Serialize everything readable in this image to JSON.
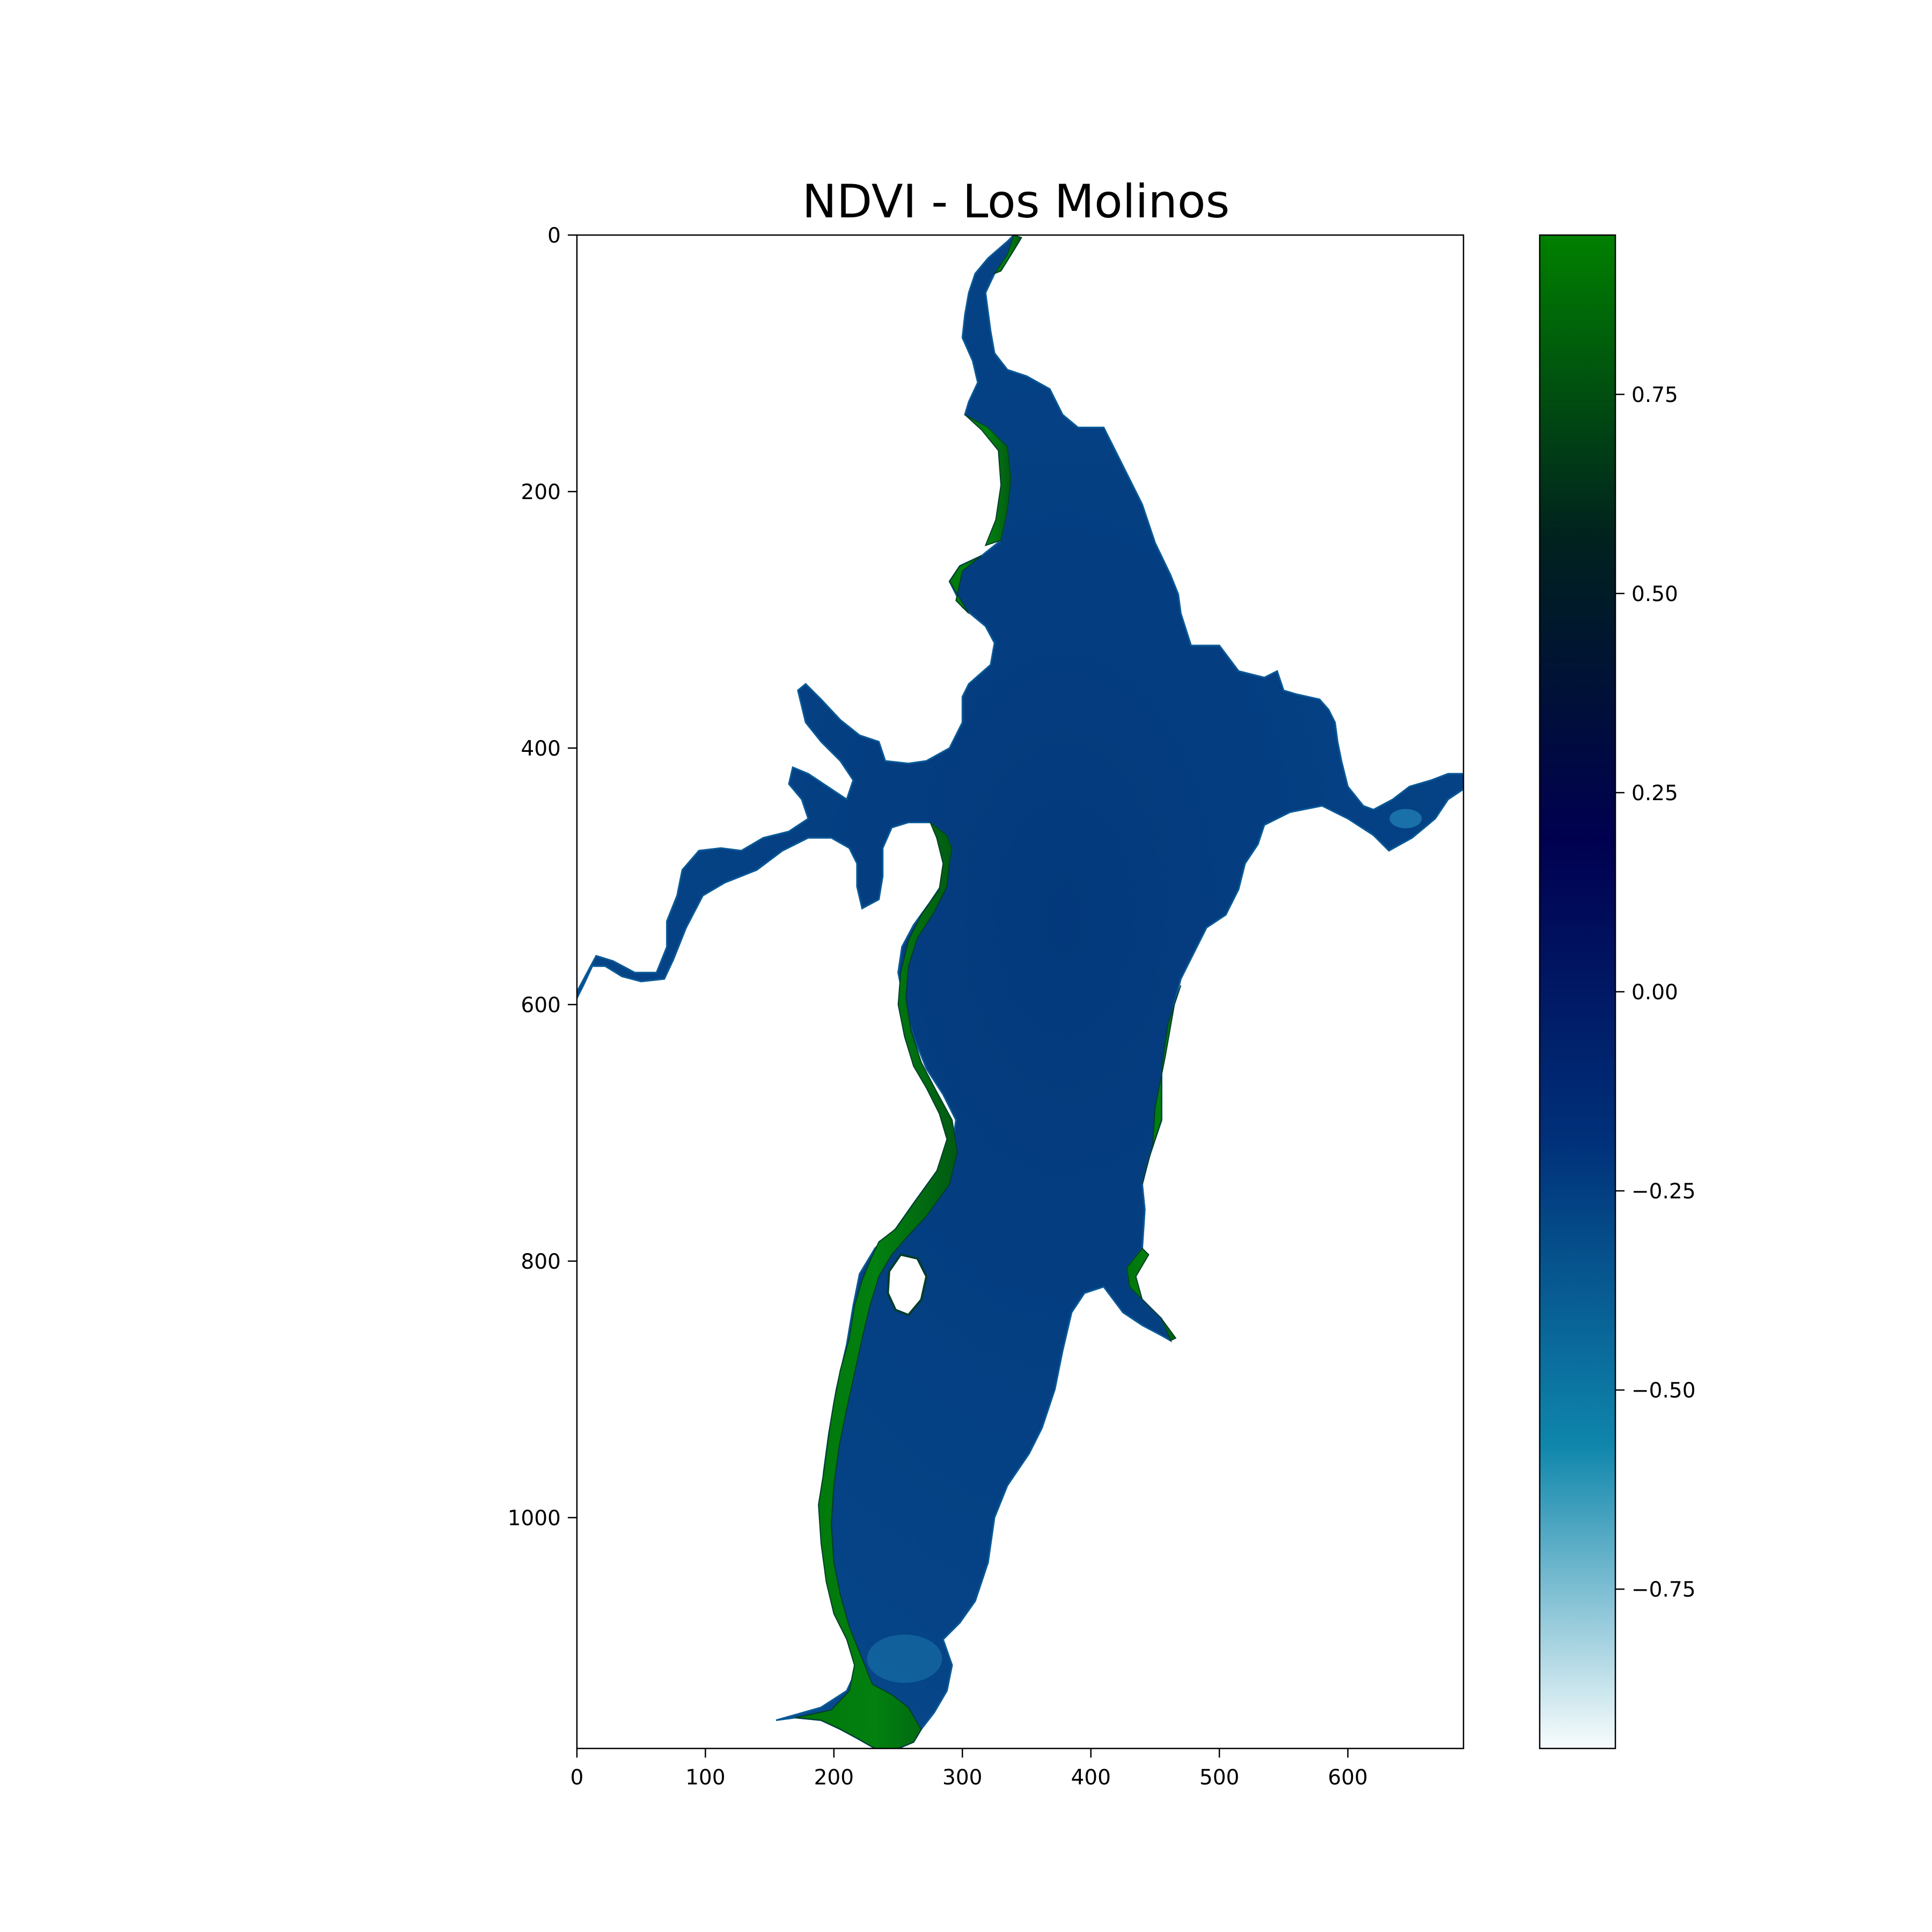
{
  "chart_data": {
    "type": "heatmap",
    "title": "NDVI - Los Molinos",
    "xlabel": "",
    "ylabel": "",
    "xlim": [
      0,
      690
    ],
    "ylim": [
      1180,
      0
    ],
    "x_ticks": [
      0,
      100,
      200,
      300,
      400,
      500,
      600
    ],
    "x_tick_labels": [
      "0",
      "100",
      "200",
      "300",
      "400",
      "500",
      "600"
    ],
    "y_ticks": [
      0,
      200,
      400,
      600,
      800,
      1000
    ],
    "y_tick_labels": [
      "0",
      "200",
      "400",
      "600",
      "800",
      "1000"
    ],
    "colorbar": {
      "cmap": "ocean_r",
      "range": [
        -0.95,
        0.95
      ],
      "ticks": [
        -0.75,
        -0.5,
        -0.25,
        0.0,
        0.25,
        0.5,
        0.75
      ],
      "tick_labels": [
        "−0.75",
        "−0.50",
        "−0.25",
        "0.00",
        "0.25",
        "0.50",
        "0.75"
      ],
      "colors": [
        "#f7fcfd",
        "#0f86ac",
        "#00317a",
        "#000050",
        "#00221e",
        "#008000"
      ]
    },
    "image": {
      "description_colors": {
        "water": "#053f83",
        "vegetation": "#017a09",
        "shallow": "#1370a8"
      },
      "shoreline": [
        [
          340,
          0
        ],
        [
          335,
          15
        ],
        [
          325,
          30
        ],
        [
          318,
          45
        ],
        [
          320,
          60
        ],
        [
          322,
          75
        ],
        [
          325,
          92
        ],
        [
          335,
          105
        ],
        [
          350,
          110
        ],
        [
          368,
          120
        ],
        [
          378,
          140
        ],
        [
          390,
          150
        ],
        [
          410,
          150
        ],
        [
          425,
          180
        ],
        [
          440,
          210
        ],
        [
          450,
          240
        ],
        [
          462,
          265
        ],
        [
          468,
          280
        ],
        [
          470,
          295
        ],
        [
          478,
          320
        ],
        [
          500,
          320
        ],
        [
          515,
          340
        ],
        [
          535,
          345
        ],
        [
          545,
          340
        ],
        [
          550,
          355
        ],
        [
          560,
          358
        ],
        [
          578,
          362
        ],
        [
          585,
          370
        ],
        [
          590,
          380
        ],
        [
          592,
          395
        ],
        [
          595,
          410
        ],
        [
          600,
          430
        ],
        [
          612,
          445
        ],
        [
          620,
          448
        ],
        [
          635,
          440
        ],
        [
          648,
          430
        ],
        [
          665,
          425
        ],
        [
          678,
          420
        ],
        [
          690,
          420
        ],
        [
          690,
          432
        ],
        [
          678,
          440
        ],
        [
          668,
          455
        ],
        [
          650,
          470
        ],
        [
          632,
          480
        ],
        [
          620,
          468
        ],
        [
          600,
          455
        ],
        [
          580,
          445
        ],
        [
          555,
          450
        ],
        [
          535,
          460
        ],
        [
          530,
          475
        ],
        [
          520,
          490
        ],
        [
          515,
          510
        ],
        [
          505,
          530
        ],
        [
          490,
          540
        ],
        [
          480,
          560
        ],
        [
          470,
          580
        ],
        [
          462,
          610
        ],
        [
          455,
          650
        ],
        [
          455,
          690
        ],
        [
          445,
          720
        ],
        [
          440,
          740
        ],
        [
          442,
          760
        ],
        [
          440,
          790
        ],
        [
          428,
          805
        ],
        [
          430,
          820
        ],
        [
          445,
          835
        ],
        [
          455,
          845
        ],
        [
          462,
          862
        ],
        [
          455,
          858
        ],
        [
          440,
          850
        ],
        [
          425,
          840
        ],
        [
          410,
          820
        ],
        [
          395,
          825
        ],
        [
          385,
          840
        ],
        [
          378,
          870
        ],
        [
          372,
          900
        ],
        [
          362,
          930
        ],
        [
          352,
          950
        ],
        [
          335,
          975
        ],
        [
          325,
          1000
        ],
        [
          320,
          1035
        ],
        [
          310,
          1065
        ],
        [
          298,
          1082
        ],
        [
          285,
          1095
        ],
        [
          292,
          1115
        ],
        [
          288,
          1135
        ],
        [
          278,
          1152
        ],
        [
          268,
          1165
        ],
        [
          262,
          1175
        ],
        [
          250,
          1180
        ],
        [
          232,
          1180
        ],
        [
          218,
          1172
        ],
        [
          205,
          1165
        ],
        [
          190,
          1158
        ],
        [
          170,
          1156
        ],
        [
          155,
          1158
        ],
        [
          190,
          1148
        ],
        [
          210,
          1135
        ],
        [
          218,
          1118
        ],
        [
          212,
          1095
        ],
        [
          202,
          1075
        ],
        [
          196,
          1055
        ],
        [
          192,
          1030
        ],
        [
          190,
          1000
        ],
        [
          192,
          965
        ],
        [
          196,
          935
        ],
        [
          202,
          900
        ],
        [
          210,
          865
        ],
        [
          215,
          835
        ],
        [
          220,
          810
        ],
        [
          232,
          790
        ],
        [
          248,
          775
        ],
        [
          262,
          755
        ],
        [
          280,
          730
        ],
        [
          292,
          710
        ],
        [
          295,
          690
        ],
        [
          285,
          670
        ],
        [
          272,
          650
        ],
        [
          262,
          625
        ],
        [
          255,
          600
        ],
        [
          250,
          575
        ],
        [
          253,
          555
        ],
        [
          262,
          538
        ],
        [
          275,
          520
        ],
        [
          285,
          505
        ],
        [
          290,
          490
        ],
        [
          292,
          478
        ],
        [
          288,
          468
        ],
        [
          275,
          458
        ],
        [
          258,
          458
        ],
        [
          245,
          462
        ],
        [
          238,
          478
        ],
        [
          238,
          500
        ],
        [
          235,
          518
        ],
        [
          222,
          525
        ],
        [
          218,
          508
        ],
        [
          218,
          490
        ],
        [
          212,
          478
        ],
        [
          198,
          470
        ],
        [
          180,
          470
        ],
        [
          160,
          480
        ],
        [
          140,
          495
        ],
        [
          115,
          505
        ],
        [
          98,
          515
        ],
        [
          85,
          540
        ],
        [
          75,
          565
        ],
        [
          68,
          580
        ],
        [
          50,
          582
        ],
        [
          35,
          578
        ],
        [
          22,
          570
        ],
        [
          12,
          570
        ],
        [
          5,
          585
        ],
        [
          0,
          595
        ],
        [
          0,
          590
        ],
        [
          8,
          575
        ],
        [
          15,
          562
        ],
        [
          28,
          566
        ],
        [
          45,
          575
        ],
        [
          62,
          575
        ],
        [
          70,
          555
        ],
        [
          70,
          535
        ],
        [
          78,
          515
        ],
        [
          82,
          495
        ],
        [
          95,
          480
        ],
        [
          112,
          478
        ],
        [
          128,
          480
        ],
        [
          145,
          470
        ],
        [
          165,
          465
        ],
        [
          180,
          455
        ],
        [
          175,
          440
        ],
        [
          165,
          428
        ],
        [
          168,
          415
        ],
        [
          180,
          420
        ],
        [
          195,
          430
        ],
        [
          210,
          440
        ],
        [
          215,
          425
        ],
        [
          205,
          410
        ],
        [
          190,
          395
        ],
        [
          178,
          380
        ],
        [
          172,
          355
        ],
        [
          178,
          350
        ],
        [
          190,
          362
        ],
        [
          205,
          378
        ],
        [
          220,
          390
        ],
        [
          235,
          395
        ],
        [
          240,
          410
        ],
        [
          258,
          412
        ],
        [
          272,
          410
        ],
        [
          290,
          400
        ],
        [
          300,
          380
        ],
        [
          300,
          360
        ],
        [
          305,
          350
        ],
        [
          322,
          335
        ],
        [
          325,
          318
        ],
        [
          318,
          305
        ],
        [
          300,
          290
        ],
        [
          290,
          270
        ],
        [
          298,
          258
        ],
        [
          315,
          250
        ],
        [
          330,
          238
        ],
        [
          335,
          215
        ],
        [
          338,
          190
        ],
        [
          335,
          165
        ],
        [
          320,
          150
        ],
        [
          302,
          140
        ],
        [
          305,
          130
        ],
        [
          312,
          115
        ],
        [
          308,
          98
        ],
        [
          300,
          80
        ],
        [
          302,
          62
        ],
        [
          305,
          45
        ],
        [
          310,
          30
        ],
        [
          320,
          18
        ],
        [
          335,
          5
        ]
      ],
      "island": [
        [
          252,
          795
        ],
        [
          265,
          798
        ],
        [
          272,
          812
        ],
        [
          268,
          830
        ],
        [
          258,
          842
        ],
        [
          248,
          838
        ],
        [
          242,
          825
        ],
        [
          243,
          808
        ]
      ],
      "vegetation_patches": [
        [
          [
            290,
            490
          ],
          [
            292,
            478
          ],
          [
            288,
            468
          ],
          [
            275,
            458
          ],
          [
            280,
            470
          ],
          [
            285,
            490
          ],
          [
            282,
            510
          ],
          [
            268,
            530
          ],
          [
            258,
            550
          ],
          [
            252,
            575
          ],
          [
            250,
            600
          ],
          [
            255,
            625
          ],
          [
            262,
            648
          ],
          [
            272,
            665
          ],
          [
            282,
            685
          ],
          [
            288,
            705
          ],
          [
            280,
            730
          ],
          [
            262,
            755
          ],
          [
            248,
            775
          ],
          [
            235,
            785
          ],
          [
            228,
            800
          ],
          [
            222,
            815
          ],
          [
            216,
            835
          ],
          [
            212,
            860
          ],
          [
            205,
            885
          ],
          [
            200,
            910
          ],
          [
            196,
            935
          ],
          [
            192,
            965
          ],
          [
            188,
            990
          ],
          [
            190,
            1020
          ],
          [
            194,
            1050
          ],
          [
            200,
            1075
          ],
          [
            210,
            1095
          ],
          [
            216,
            1115
          ],
          [
            212,
            1135
          ],
          [
            198,
            1150
          ],
          [
            170,
            1156
          ],
          [
            190,
            1158
          ],
          [
            205,
            1165
          ],
          [
            218,
            1172
          ],
          [
            232,
            1180
          ],
          [
            250,
            1180
          ],
          [
            262,
            1175
          ],
          [
            268,
            1165
          ],
          [
            258,
            1148
          ],
          [
            245,
            1138
          ],
          [
            230,
            1130
          ],
          [
            222,
            1110
          ],
          [
            212,
            1085
          ],
          [
            205,
            1060
          ],
          [
            200,
            1035
          ],
          [
            198,
            1005
          ],
          [
            200,
            975
          ],
          [
            204,
            945
          ],
          [
            210,
            915
          ],
          [
            216,
            888
          ],
          [
            222,
            860
          ],
          [
            228,
            835
          ],
          [
            235,
            812
          ],
          [
            245,
            795
          ],
          [
            258,
            780
          ],
          [
            272,
            765
          ],
          [
            290,
            740
          ],
          [
            296,
            715
          ],
          [
            292,
            690
          ],
          [
            280,
            668
          ],
          [
            268,
            645
          ],
          [
            260,
            620
          ],
          [
            256,
            595
          ],
          [
            258,
            570
          ],
          [
            265,
            548
          ],
          [
            278,
            528
          ],
          [
            288,
            508
          ]
        ],
        [
          [
            455,
            650
          ],
          [
            460,
            615
          ],
          [
            470,
            585
          ],
          [
            465,
            600
          ],
          [
            458,
            640
          ],
          [
            450,
            680
          ],
          [
            448,
            710
          ],
          [
            440,
            740
          ],
          [
            445,
            720
          ],
          [
            455,
            690
          ]
        ],
        [
          [
            440,
            790
          ],
          [
            428,
            805
          ],
          [
            430,
            820
          ],
          [
            445,
            835
          ],
          [
            455,
            845
          ],
          [
            462,
            862
          ],
          [
            466,
            860
          ],
          [
            455,
            845
          ],
          [
            440,
            830
          ],
          [
            435,
            812
          ],
          [
            445,
            795
          ]
        ],
        [
          [
            330,
            238
          ],
          [
            335,
            215
          ],
          [
            338,
            190
          ],
          [
            335,
            165
          ],
          [
            320,
            150
          ],
          [
            302,
            140
          ],
          [
            315,
            152
          ],
          [
            328,
            168
          ],
          [
            330,
            195
          ],
          [
            326,
            222
          ],
          [
            318,
            242
          ]
        ],
        [
          [
            290,
            270
          ],
          [
            298,
            258
          ],
          [
            315,
            250
          ],
          [
            300,
            262
          ],
          [
            295,
            285
          ],
          [
            305,
            295
          ]
        ],
        [
          [
            340,
            0
          ],
          [
            335,
            15
          ],
          [
            325,
            30
          ],
          [
            330,
            28
          ],
          [
            340,
            12
          ],
          [
            346,
            2
          ]
        ]
      ]
    }
  }
}
